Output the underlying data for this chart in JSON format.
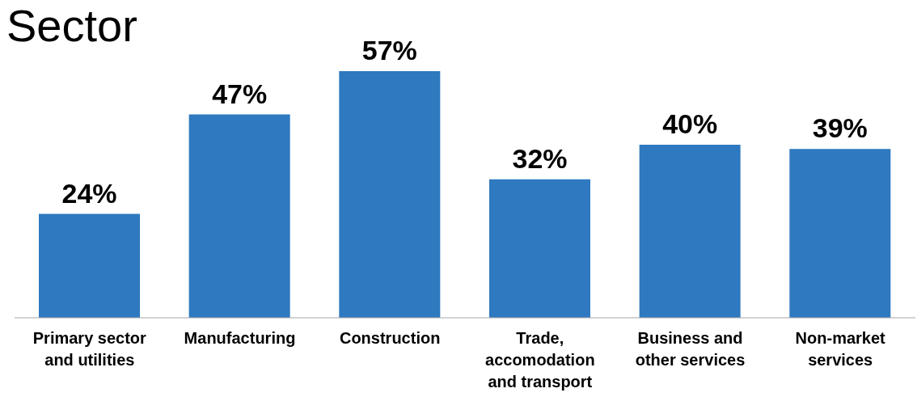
{
  "chart_data": {
    "type": "bar",
    "title": "Sector",
    "categories": [
      "Primary sector and utilities",
      "Manufacturing",
      "Construction",
      "Trade, accomodation and transport",
      "Business and other services",
      "Non-market services"
    ],
    "values": [
      24,
      47,
      57,
      32,
      40,
      39
    ],
    "value_labels": [
      "24%",
      "47%",
      "57%",
      "32%",
      "40%",
      "39%"
    ],
    "color": "#2e79bf",
    "grid": false
  }
}
